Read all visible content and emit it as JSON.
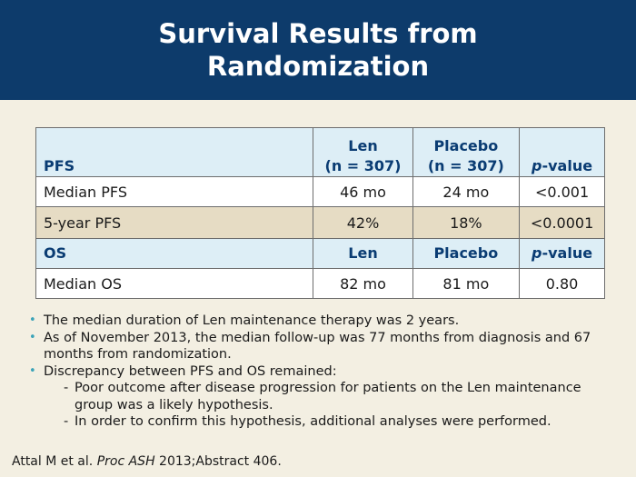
{
  "title": "Survival Results from Randomization",
  "table": {
    "pfs_header": {
      "label": "PFS",
      "len": "Len\n(n = 307)",
      "placebo": "Placebo\n(n = 307)",
      "pvalue_letter": "p",
      "pvalue_rest": "-value"
    },
    "rows_pfs": [
      {
        "label": "Median PFS",
        "len": "46 mo",
        "placebo": "24 mo",
        "p": "<0.001"
      },
      {
        "label": "5-year PFS",
        "len": "42%",
        "placebo": "18%",
        "p": "<0.0001"
      }
    ],
    "os_header": {
      "label": "OS",
      "len": "Len",
      "placebo": "Placebo",
      "pvalue_letter": "p",
      "pvalue_rest": "-value"
    },
    "rows_os": [
      {
        "label": "Median OS",
        "len": "82 mo",
        "placebo": "81 mo",
        "p": "0.80"
      }
    ]
  },
  "bullets": [
    "The median duration of Len maintenance therapy was 2 years.",
    "As of November 2013, the median follow-up was 77 months from diagnosis and 67 months from randomization.",
    "Discrepancy between PFS and OS remained:"
  ],
  "sub_bullets": [
    "Poor outcome after disease progression for patients on the Len maintenance group was a likely hypothesis.",
    "In order to confirm this hypothesis, additional analyses were performed."
  ],
  "citation": {
    "authors": "Attal M et al.",
    "journal": "Proc ASH",
    "rest": "2013;Abstract 406."
  },
  "colors": {
    "header_bg": "#0d3b6b",
    "page_bg": "#f3efe2",
    "table_header_bg": "#ddeef6",
    "table_alt_row_bg": "#e6dcc4",
    "header_text": "#0a3c73",
    "bullet": "#3aa3b8"
  }
}
